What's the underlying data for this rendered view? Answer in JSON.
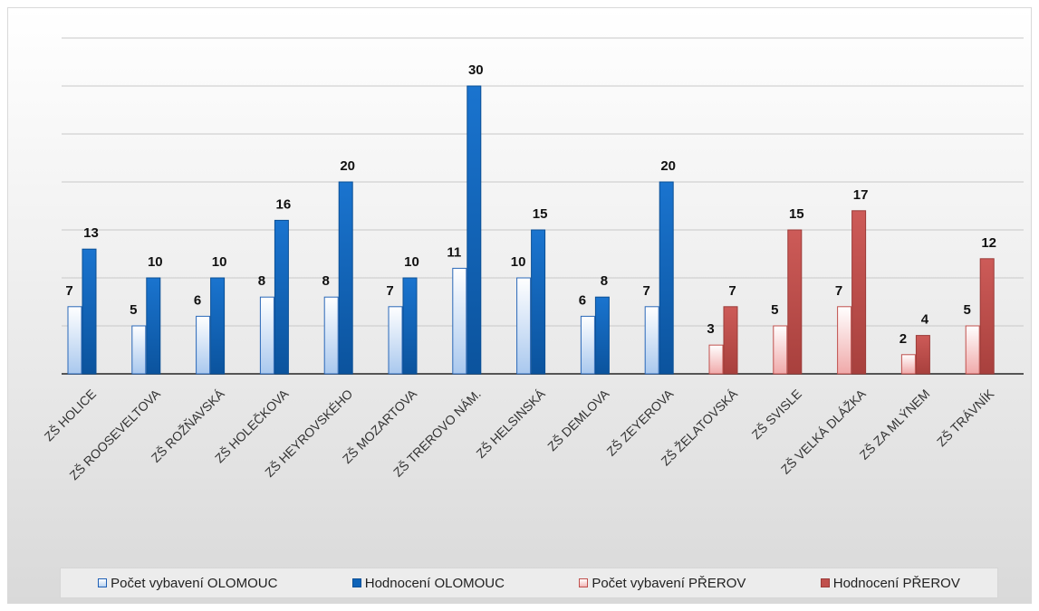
{
  "chart_data": {
    "type": "bar",
    "title": "",
    "xlabel": "",
    "ylabel": "",
    "ylim": [
      0,
      35
    ],
    "grid": true,
    "legend_position": "bottom",
    "categories": [
      "ZŠ HOLICE",
      "ZŠ ROOSEVELTOVA",
      "ZŠ ROŽŇAVSKÁ",
      "ZŠ HOLEČKOVA",
      "ZŠ HEYROVSKÉHO",
      "ZŠ MOZARTOVA",
      "ZŠ TREROVO NÁM.",
      "ZŠ HELSINSKÁ",
      "ZŠ DEMLOVA",
      "ZŠ ZEYEROVA",
      "ZŠ ŽELATOVSKÁ",
      "ZŠ SVISLE",
      "ZŠ VELKÁ DLÁŽKA",
      "ZŠ ZA MLÝNEM",
      "ZŠ TRÁVNÍK"
    ],
    "series": [
      {
        "name": "Počet vybavení OLOMOUC",
        "color": "#2f76c9",
        "values": [
          7,
          5,
          6,
          8,
          8,
          7,
          11,
          10,
          6,
          7,
          null,
          null,
          null,
          null,
          null
        ]
      },
      {
        "name": "Hodnocení OLOMOUC",
        "color": "#0e63b8",
        "values": [
          13,
          10,
          10,
          16,
          20,
          10,
          30,
          15,
          8,
          20,
          null,
          null,
          null,
          null,
          null
        ]
      },
      {
        "name": "Počet vybavení PŘEROV",
        "color": "#e07a78",
        "values": [
          null,
          null,
          null,
          null,
          null,
          null,
          null,
          null,
          null,
          null,
          3,
          5,
          7,
          2,
          5
        ]
      },
      {
        "name": "Hodnocení PŘEROV",
        "color": "#c0504d",
        "values": [
          null,
          null,
          null,
          null,
          null,
          null,
          null,
          null,
          null,
          null,
          7,
          15,
          17,
          4,
          12
        ]
      }
    ]
  }
}
